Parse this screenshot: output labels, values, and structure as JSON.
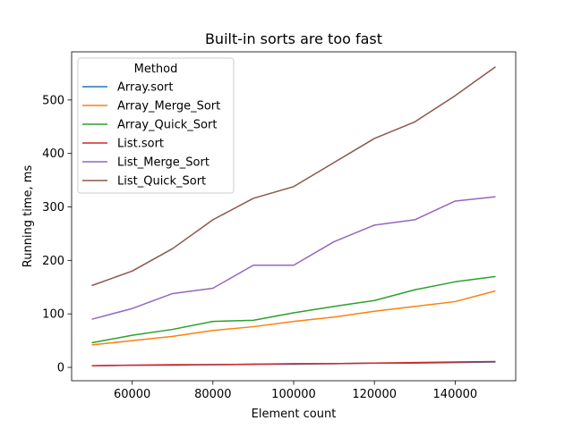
{
  "chart_data": {
    "type": "line",
    "title": "Built-in sorts are too fast",
    "xlabel": "Element count",
    "ylabel": "Running time, ms",
    "x": [
      50000,
      60000,
      70000,
      80000,
      90000,
      100000,
      110000,
      120000,
      130000,
      140000,
      150000
    ],
    "xlim": [
      45000,
      155000
    ],
    "ylim": [
      -25,
      590
    ],
    "xticks": [
      60000,
      80000,
      100000,
      120000,
      140000
    ],
    "xtick_labels": [
      "60000",
      "80000",
      "100000",
      "120000",
      "140000"
    ],
    "yticks": [
      0,
      100,
      200,
      300,
      400,
      500
    ],
    "ytick_labels": [
      "0",
      "100",
      "200",
      "300",
      "400",
      "500"
    ],
    "grid": false,
    "legend": {
      "title": "Method",
      "placement": "upper-left"
    },
    "series": [
      {
        "name": "Array.sort",
        "color": "#1f77b4",
        "values": [
          3,
          4,
          4,
          5,
          6,
          6,
          7,
          8,
          8,
          9,
          10
        ]
      },
      {
        "name": "Array_Merge_Sort",
        "color": "#ff7f0e",
        "values": [
          42,
          50,
          58,
          69,
          76,
          86,
          94,
          105,
          114,
          123,
          143
        ]
      },
      {
        "name": "Array_Quick_Sort",
        "color": "#2ca02c",
        "values": [
          46,
          60,
          71,
          86,
          88,
          102,
          114,
          125,
          145,
          160,
          170
        ]
      },
      {
        "name": "List.sort",
        "color": "#d62728",
        "values": [
          3,
          4,
          5,
          5,
          6,
          7,
          7,
          8,
          9,
          10,
          11
        ]
      },
      {
        "name": "List_Merge_Sort",
        "color": "#9467bd",
        "values": [
          90,
          110,
          138,
          148,
          191,
          191,
          235,
          266,
          276,
          311,
          319
        ]
      },
      {
        "name": "List_Quick_Sort",
        "color": "#8c564b",
        "values": [
          153,
          180,
          222,
          276,
          316,
          338,
          383,
          428,
          459,
          508,
          562
        ]
      }
    ]
  }
}
